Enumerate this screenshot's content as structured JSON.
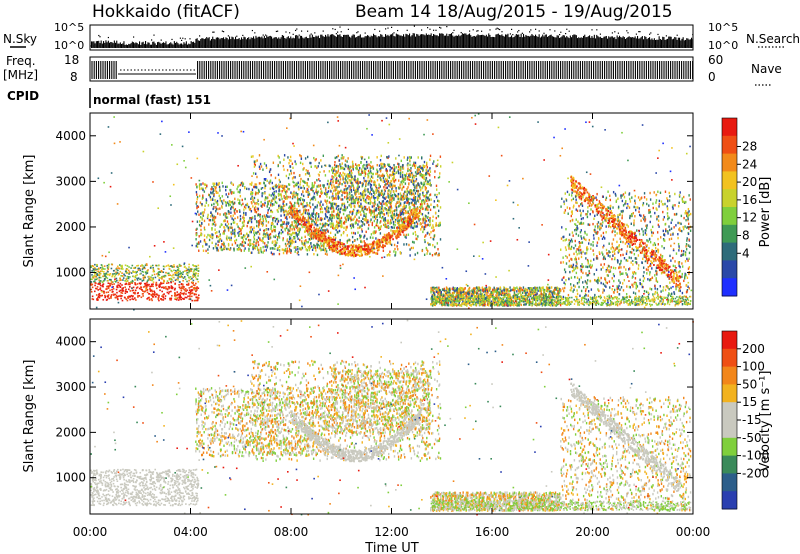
{
  "header": {
    "station": "Hokkaido (fitACF)",
    "beam_date": "Beam 14 18/Aug/2015 - 19/Aug/2015"
  },
  "strip_labels": {
    "nsky": "N.Sky",
    "nsearch": "N.Search",
    "freq": "Freq.",
    "freq_unit": "[MHz]",
    "nave": "Nave",
    "cpid": "CPID",
    "cpid_value": "normal (fast) 151"
  },
  "colors": {
    "power_scale": [
      "#1f2fff",
      "#2a48a8",
      "#2e6b7a",
      "#3f9a55",
      "#7fcf3c",
      "#c8d22c",
      "#f2c21f",
      "#f28a1a",
      "#ef4f14",
      "#e81a10"
    ],
    "velocity_scale": [
      "#2a3fb0",
      "#2c5e8a",
      "#3a8a5a",
      "#7fcf3c",
      "#c9c9bf",
      "#c9c9bf",
      "#f2b21f",
      "#f2861a",
      "#ef4f14",
      "#e81a10"
    ]
  },
  "chart_data": [
    {
      "type": "line",
      "name": "noise",
      "x_ticks": [
        "00:00",
        "04:00",
        "08:00",
        "12:00",
        "16:00",
        "20:00",
        "00:00"
      ],
      "left_ticks": [
        "10^5",
        "10^0"
      ],
      "right_ticks": [
        "10^5",
        "10^0"
      ]
    },
    {
      "type": "line",
      "name": "frequency",
      "left_ticks": [
        "18",
        "8"
      ],
      "right_ticks": [
        "60",
        "0"
      ]
    },
    {
      "type": "heatmap",
      "name": "power",
      "x_ticks": [
        "00:00",
        "04:00",
        "08:00",
        "12:00",
        "16:00",
        "20:00",
        "00:00"
      ],
      "ylabel": "Slant Range [km]",
      "y_ticks": [
        "1000",
        "2000",
        "3000",
        "4000"
      ],
      "colorbar_label": "Power [dB]",
      "colorbar_ticks": [
        "28",
        "24",
        "20",
        "16",
        "12",
        "8",
        "4"
      ]
    },
    {
      "type": "heatmap",
      "name": "velocity",
      "x_ticks": [
        "00:00",
        "04:00",
        "08:00",
        "12:00",
        "16:00",
        "20:00",
        "00:00"
      ],
      "xlabel": "Time UT",
      "ylabel": "Slant Range [km]",
      "y_ticks": [
        "1000",
        "2000",
        "3000",
        "4000"
      ],
      "colorbar_label": "Velocity [m s⁻¹]",
      "colorbar_ticks": [
        "200",
        "100",
        "50",
        "15",
        "-15",
        "-50",
        "-100",
        "-200"
      ]
    }
  ]
}
